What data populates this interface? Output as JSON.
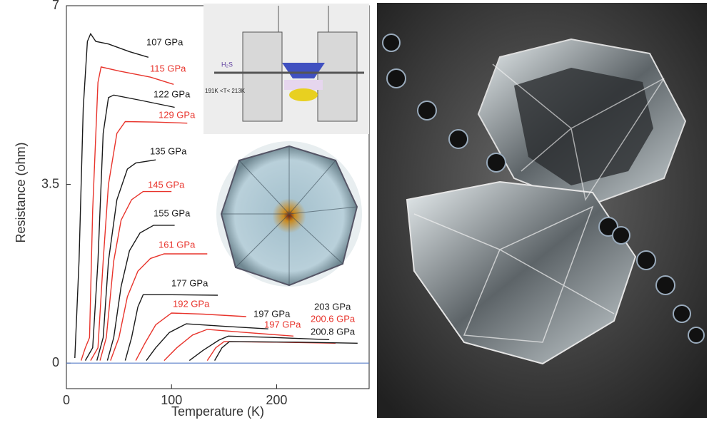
{
  "chart_data": {
    "type": "line",
    "x_label": "Temperature (K)",
    "y_label": "Resistance (ohm)",
    "xlim": [
      0,
      288
    ],
    "ylim": [
      -0.5,
      7
    ],
    "xticks": [
      0,
      100,
      200
    ],
    "yticks": [
      0,
      3.5,
      7
    ],
    "baseline_color": "#5a7fc8",
    "series": [
      {
        "name": "107 GPa",
        "color": "#1a1a1a",
        "x": [
          8,
          12,
          16,
          20,
          23,
          28,
          40,
          60,
          78
        ],
        "values": [
          0.1,
          2,
          5,
          6.3,
          6.45,
          6.3,
          6.25,
          6.1,
          5.99
        ]
      },
      {
        "name": "115 GPa",
        "color": "#e8342c",
        "x": [
          14,
          18,
          22,
          25,
          30,
          33,
          50,
          80,
          102
        ],
        "values": [
          0.05,
          0.3,
          0.5,
          3,
          5.5,
          5.8,
          5.72,
          5.6,
          5.46
        ]
      },
      {
        "name": "122 GPa",
        "color": "#1a1a1a",
        "x": [
          18,
          25,
          30,
          35,
          40,
          45,
          70,
          103
        ],
        "values": [
          0.05,
          0.3,
          2,
          4.5,
          5.2,
          5.25,
          5.15,
          5.01
        ]
      },
      {
        "name": "129 GPa",
        "color": "#e8342c",
        "x": [
          23,
          30,
          35,
          40,
          48,
          56,
          85,
          115
        ],
        "values": [
          0.05,
          0.3,
          2,
          3.5,
          4.5,
          4.73,
          4.72,
          4.7
        ]
      },
      {
        "name": "135 GPa",
        "color": "#1a1a1a",
        "x": [
          29,
          35,
          40,
          48,
          58,
          66,
          85
        ],
        "values": [
          0.05,
          0.5,
          2,
          3.2,
          3.8,
          3.92,
          3.98
        ]
      },
      {
        "name": "145 GPa",
        "color": "#e8342c",
        "x": [
          32,
          38,
          45,
          52,
          62,
          73,
          100
        ],
        "values": [
          0.05,
          0.5,
          2,
          2.8,
          3.2,
          3.36,
          3.36
        ]
      },
      {
        "name": "155 GPa",
        "color": "#1a1a1a",
        "x": [
          39,
          45,
          52,
          60,
          70,
          83,
          103
        ],
        "values": [
          0.05,
          0.5,
          1.5,
          2.2,
          2.55,
          2.7,
          2.7
        ]
      },
      {
        "name": "161 GPa",
        "color": "#e8342c",
        "x": [
          42,
          50,
          58,
          68,
          80,
          93,
          134
        ],
        "values": [
          0.05,
          0.5,
          1.3,
          1.8,
          2.05,
          2.14,
          2.14
        ]
      },
      {
        "name": "177 GPa",
        "color": "#1a1a1a",
        "x": [
          56,
          62,
          68,
          73,
          100,
          144
        ],
        "values": [
          0.05,
          0.5,
          1.1,
          1.34,
          1.34,
          1.33
        ]
      },
      {
        "name": "192 GPa",
        "color": "#e8342c",
        "x": [
          66,
          75,
          85,
          100,
          130,
          171
        ],
        "values": [
          0.05,
          0.4,
          0.75,
          0.98,
          0.96,
          0.91
        ]
      },
      {
        "name": "197 GPa",
        "color": "#1a1a1a",
        "x": [
          76,
          85,
          98,
          114,
          150,
          192
        ],
        "values": [
          0.05,
          0.3,
          0.6,
          0.77,
          0.72,
          0.67
        ]
      },
      {
        "name": "197 GPa",
        "color": "#e8342c",
        "x": [
          93,
          105,
          120,
          134,
          170,
          216
        ],
        "values": [
          0.05,
          0.3,
          0.55,
          0.66,
          0.6,
          0.53
        ]
      },
      {
        "name": "203 GPa",
        "color": "#1a1a1a",
        "x": [
          117,
          130,
          145,
          154,
          200,
          250
        ],
        "values": [
          0.05,
          0.25,
          0.45,
          0.53,
          0.5,
          0.46
        ]
      },
      {
        "name": "200.6 GPa",
        "color": "#e8342c",
        "x": [
          134,
          142,
          150,
          200,
          256
        ],
        "values": [
          0.05,
          0.3,
          0.42,
          0.41,
          0.39
        ]
      },
      {
        "name": "200.8 GPa",
        "color": "#1a1a1a",
        "x": [
          141,
          148,
          155,
          220,
          277
        ],
        "values": [
          0.05,
          0.3,
          0.42,
          0.41,
          0.39
        ]
      }
    ]
  },
  "inset": {
    "gas": "H₂S",
    "range": "191K <T< 213K"
  }
}
